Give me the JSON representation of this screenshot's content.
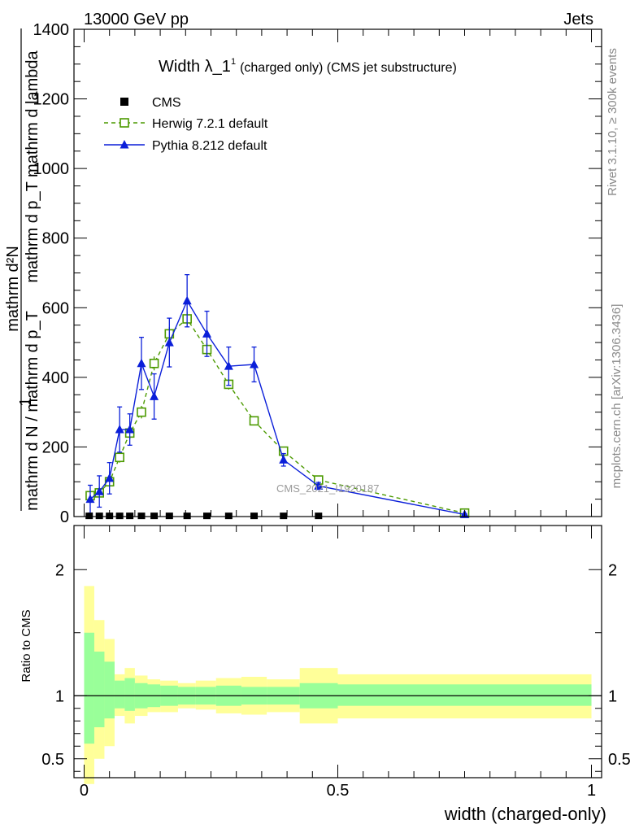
{
  "header": {
    "left_label": "13000 GeV pp",
    "right_label": "Jets"
  },
  "side_labels": {
    "rivet": "Rivet 3.1.10, ≥ 300k events",
    "mcplots": "mcplots.cern.ch [arXiv:1306.3436]"
  },
  "watermark": "CMS_2021_I1920187",
  "colors": {
    "herwig": "#4c9a00",
    "pythia": "#0b1fd9",
    "cms": "#000000",
    "band_inner": "#99ff99",
    "band_outer": "#ffff99"
  },
  "chart_data": [
    {
      "type": "line",
      "title_main": "Width λ_1",
      "title_sup": "1",
      "title_rest": "(charged only) (CMS jet substructure)",
      "ylabel_top": "1",
      "ylabel_denominator": "mathrm d N / mathrm d p_T",
      "ylabel_numerator": "mathrm d²N",
      "ylabel_subtitle": "mathrm d p_T mathrm d lambda",
      "xlabel": "width (charged-only)",
      "xlim": [
        -0.02,
        1.02
      ],
      "ylim": [
        0,
        1400
      ],
      "y_ticks": [
        "0",
        "200",
        "400",
        "600",
        "800",
        "1000",
        "1200",
        "1400"
      ],
      "y_tick_values": [
        0,
        200,
        400,
        600,
        800,
        1000,
        1200,
        1400
      ],
      "legend": [
        {
          "key": "cms",
          "label": "CMS"
        },
        {
          "key": "herwig",
          "label": "Herwig 7.2.1 default"
        },
        {
          "key": "pythia",
          "label": "Pythia 8.212 default"
        }
      ],
      "series": [
        {
          "name": "CMS",
          "style": "square",
          "points": [
            [
              0.01,
              2
            ],
            [
              0.03,
              2
            ],
            [
              0.05,
              2
            ],
            [
              0.07,
              2
            ],
            [
              0.09,
              2
            ],
            [
              0.113,
              2
            ],
            [
              0.138,
              2
            ],
            [
              0.168,
              2
            ],
            [
              0.203,
              2
            ],
            [
              0.242,
              2
            ],
            [
              0.285,
              2
            ],
            [
              0.335,
              2
            ],
            [
              0.393,
              2
            ],
            [
              0.462,
              2
            ]
          ]
        },
        {
          "name": "Herwig 7.2.1 default",
          "style": "open-square-dashed",
          "points": [
            [
              0.012,
              60,
              10
            ],
            [
              0.03,
              68,
              10
            ],
            [
              0.05,
              100,
              12
            ],
            [
              0.07,
              170,
              15
            ],
            [
              0.09,
              240,
              18
            ],
            [
              0.113,
              300,
              18
            ],
            [
              0.138,
              440,
              20
            ],
            [
              0.168,
              525,
              20
            ],
            [
              0.203,
              568,
              20
            ],
            [
              0.242,
              480,
              18
            ],
            [
              0.285,
              380,
              15
            ],
            [
              0.335,
              275,
              12
            ],
            [
              0.393,
              188,
              10
            ],
            [
              0.462,
              105,
              8
            ],
            [
              0.75,
              10,
              3
            ]
          ]
        },
        {
          "name": "Pythia 8.212 default",
          "style": "triangle-solid",
          "points": [
            [
              0.012,
              50,
              40
            ],
            [
              0.03,
              72,
              45
            ],
            [
              0.05,
              110,
              45
            ],
            [
              0.07,
              250,
              65
            ],
            [
              0.09,
              250,
              45
            ],
            [
              0.113,
              440,
              75
            ],
            [
              0.138,
              345,
              65
            ],
            [
              0.168,
              500,
              70
            ],
            [
              0.203,
              620,
              75
            ],
            [
              0.242,
              525,
              65
            ],
            [
              0.285,
              432,
              55
            ],
            [
              0.335,
              437,
              50
            ],
            [
              0.393,
              163,
              18
            ],
            [
              0.462,
              88,
              10
            ],
            [
              0.75,
              6,
              2
            ]
          ]
        }
      ]
    },
    {
      "type": "area",
      "ylabel": "Ratio to CMS",
      "ylim": [
        0.35,
        2.35
      ],
      "y_tick_labels": [
        "0.5",
        "1",
        "2"
      ],
      "y_tick_values": [
        0.5,
        1,
        2
      ],
      "x_tick_labels": [
        "0",
        "0.5",
        "1"
      ],
      "x_tick_values": [
        0,
        0.5,
        1
      ],
      "reference_line": 1,
      "bands": [
        {
          "x0": 0.0,
          "x1": 0.02,
          "inner": [
            0.62,
            1.5
          ],
          "outer": [
            0.3,
            1.87
          ]
        },
        {
          "x0": 0.02,
          "x1": 0.04,
          "inner": [
            0.75,
            1.35
          ],
          "outer": [
            0.5,
            1.6
          ]
        },
        {
          "x0": 0.04,
          "x1": 0.06,
          "inner": [
            0.82,
            1.27
          ],
          "outer": [
            0.6,
            1.45
          ]
        },
        {
          "x0": 0.06,
          "x1": 0.08,
          "inner": [
            0.9,
            1.12
          ],
          "outer": [
            0.84,
            1.17
          ]
        },
        {
          "x0": 0.08,
          "x1": 0.1,
          "inner": [
            0.88,
            1.14
          ],
          "outer": [
            0.78,
            1.22
          ]
        },
        {
          "x0": 0.1,
          "x1": 0.125,
          "inner": [
            0.9,
            1.1
          ],
          "outer": [
            0.84,
            1.16
          ]
        },
        {
          "x0": 0.125,
          "x1": 0.15,
          "inner": [
            0.91,
            1.09
          ],
          "outer": [
            0.87,
            1.13
          ]
        },
        {
          "x0": 0.15,
          "x1": 0.185,
          "inner": [
            0.92,
            1.08
          ],
          "outer": [
            0.87,
            1.12
          ]
        },
        {
          "x0": 0.185,
          "x1": 0.22,
          "inner": [
            0.93,
            1.07
          ],
          "outer": [
            0.9,
            1.1
          ]
        },
        {
          "x0": 0.22,
          "x1": 0.26,
          "inner": [
            0.93,
            1.07
          ],
          "outer": [
            0.89,
            1.12
          ]
        },
        {
          "x0": 0.26,
          "x1": 0.31,
          "inner": [
            0.92,
            1.08
          ],
          "outer": [
            0.86,
            1.14
          ]
        },
        {
          "x0": 0.31,
          "x1": 0.36,
          "inner": [
            0.93,
            1.07
          ],
          "outer": [
            0.85,
            1.15
          ]
        },
        {
          "x0": 0.36,
          "x1": 0.425,
          "inner": [
            0.93,
            1.07
          ],
          "outer": [
            0.87,
            1.13
          ]
        },
        {
          "x0": 0.425,
          "x1": 0.5,
          "inner": [
            0.9,
            1.1
          ],
          "outer": [
            0.78,
            1.22
          ]
        },
        {
          "x0": 0.5,
          "x1": 1.0,
          "inner": [
            0.92,
            1.09
          ],
          "outer": [
            0.82,
            1.17
          ]
        }
      ]
    }
  ]
}
